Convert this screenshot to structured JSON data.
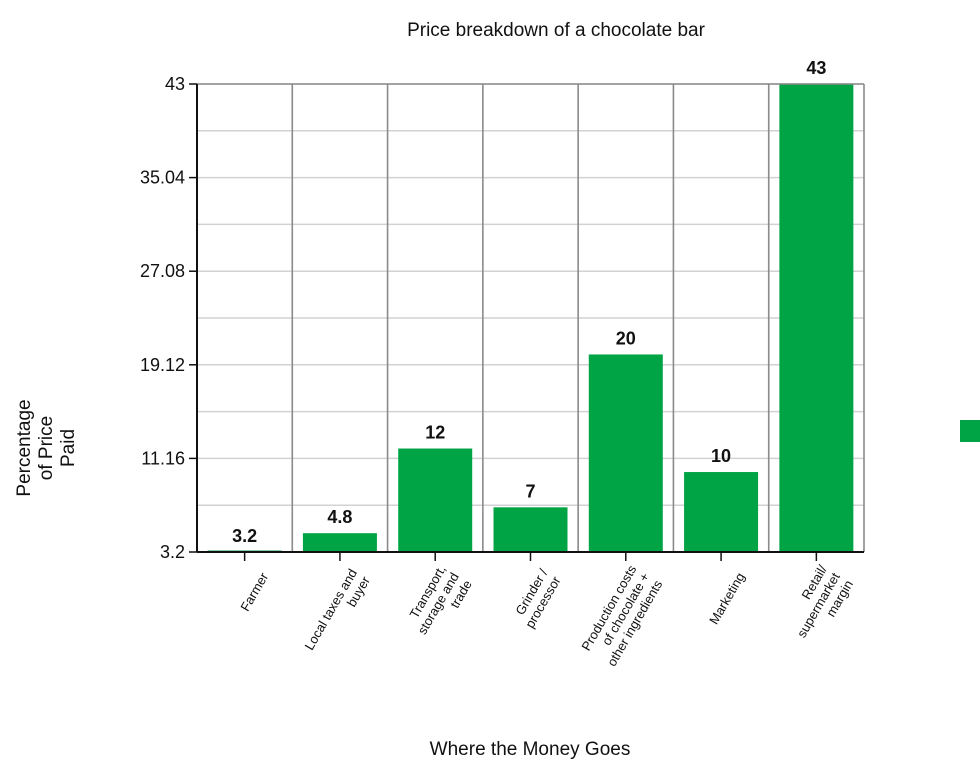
{
  "chart_data": {
    "type": "bar",
    "title": "Price breakdown of a chocolate bar",
    "xlabel": "Where the Money Goes",
    "ylabel": "Percentage of Price Paid",
    "ylabel_lines": [
      "Percentage",
      "of Price",
      "Paid"
    ],
    "ylim": [
      3.2,
      43
    ],
    "yticks": [
      3.2,
      11.16,
      19.12,
      27.08,
      35.04,
      43
    ],
    "ytick_labels": [
      "3.2",
      "11.16",
      "19.12",
      "27.08",
      "35.04",
      "43"
    ],
    "grid": true,
    "legend": "right",
    "color": "#00a444",
    "categories": [
      [
        "Farmer"
      ],
      [
        "Local taxes and",
        "buyer"
      ],
      [
        "Transport,",
        "storage and",
        "trade"
      ],
      [
        "Grinder /",
        "processor"
      ],
      [
        "Production costs",
        "of chocolate +",
        "other ingredients"
      ],
      [
        "Marketing"
      ],
      [
        "Retail/",
        "supermarket",
        "margin"
      ]
    ],
    "values": [
      3.2,
      4.8,
      12,
      7,
      20,
      10,
      43
    ],
    "value_labels": [
      "3.2",
      "4.8",
      "12",
      "7",
      "20",
      "10",
      "43"
    ]
  }
}
